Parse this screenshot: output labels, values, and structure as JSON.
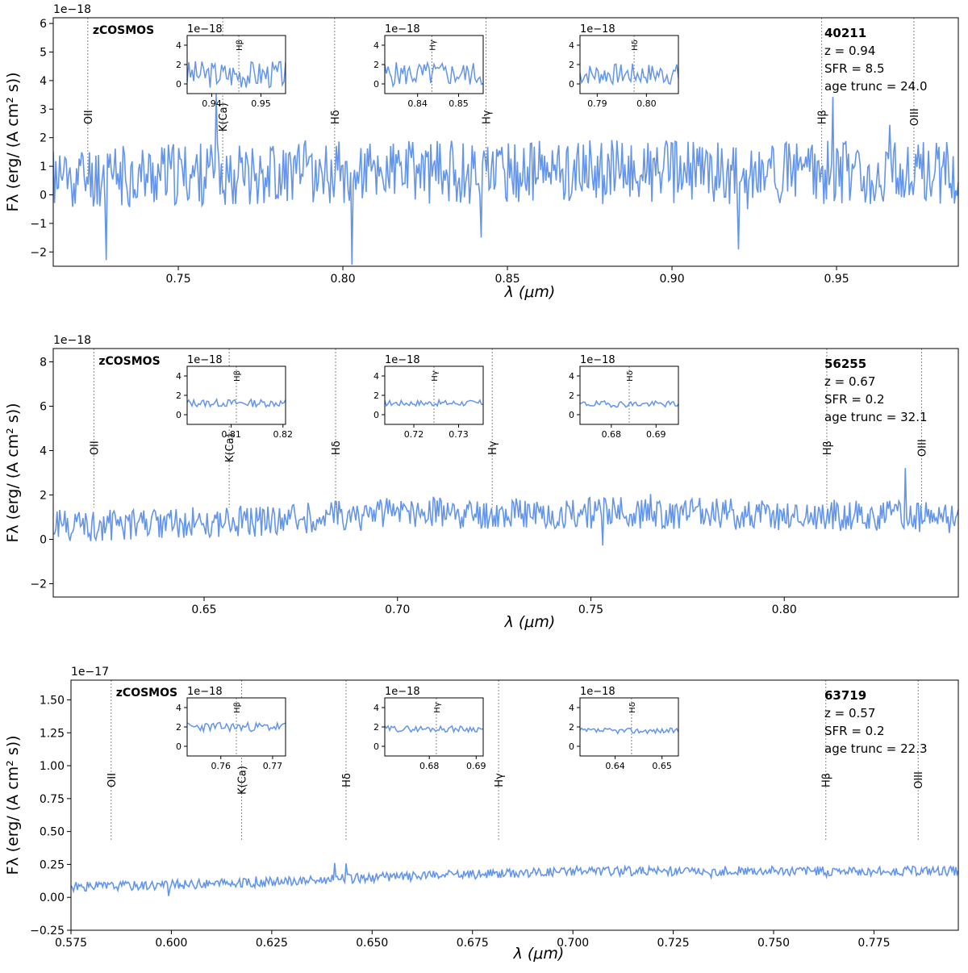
{
  "figure": {
    "survey_label": "zCOSMOS",
    "xlabel": "λ (μm)",
    "ylabel": "Fλ (erg/ (A cm² s))",
    "line_color": "#6495ED"
  },
  "chart_data": [
    {
      "type": "line",
      "id": "40211",
      "z_label": "z = 0.94",
      "sfr_label": "SFR = 8.5",
      "age_label": "age trunc = 24.0",
      "offset_label": "1e−18",
      "xlim": [
        0.712,
        0.987
      ],
      "ylim": [
        -2.5,
        6.2
      ],
      "xticks": [
        0.75,
        0.8,
        0.85,
        0.9,
        0.95
      ],
      "xtick_labels": [
        "0.75",
        "0.80",
        "0.85",
        "0.90",
        "0.95"
      ],
      "yticks": [
        -2,
        -1,
        0,
        1,
        2,
        3,
        4,
        5,
        6
      ],
      "ytick_labels": [
        "−2",
        "−1",
        "0",
        "1",
        "2",
        "3",
        "4",
        "5",
        "6"
      ],
      "series": [
        {
          "name": "spectrum",
          "baseline": 0.7,
          "noise": 1.4,
          "seed": 11,
          "segments": [
            [
              0.712,
              0.6
            ],
            [
              0.78,
              0.8
            ],
            [
              0.85,
              0.8
            ],
            [
              0.9,
              0.8
            ],
            [
              0.987,
              0.8
            ]
          ]
        }
      ],
      "lines": [
        {
          "name": "OII",
          "label": "OII",
          "x": 0.7225
        },
        {
          "name": "K(Ca)",
          "label": "K(Ca)",
          "x": 0.7635
        },
        {
          "name": "Hdelta",
          "label": "Hδ",
          "x": 0.7975
        },
        {
          "name": "Hgamma",
          "label": "Hγ",
          "x": 0.8435
        },
        {
          "name": "Hbeta",
          "label": "Hβ",
          "x": 0.9455
        },
        {
          "name": "OIII",
          "label": "OIII",
          "x": 0.9735
        }
      ],
      "insets": [
        {
          "line": "Hβ",
          "offset_label": "1e−18",
          "xlim": [
            0.935,
            0.955
          ],
          "ylim": [
            -1,
            5
          ],
          "xticks": [
            0.94,
            0.95
          ],
          "xtick_labels": [
            "0.94",
            "0.95"
          ],
          "yticks": [
            0,
            2,
            4
          ],
          "ytick_labels": [
            "0",
            "2",
            "4"
          ],
          "line_x": 0.9455,
          "baseline": 1.0,
          "noise": 1.8,
          "seed": 3
        },
        {
          "line": "Hγ",
          "offset_label": "1e−18",
          "xlim": [
            0.832,
            0.856
          ],
          "ylim": [
            -1,
            5
          ],
          "xticks": [
            0.84,
            0.85
          ],
          "xtick_labels": [
            "0.84",
            "0.85"
          ],
          "yticks": [
            0,
            2,
            4
          ],
          "ytick_labels": [
            "0",
            "2",
            "4"
          ],
          "line_x": 0.8435,
          "baseline": 1.0,
          "noise": 1.6,
          "seed": 5
        },
        {
          "line": "Hδ",
          "offset_label": "1e−18",
          "xlim": [
            0.7865,
            0.8065
          ],
          "ylim": [
            -1,
            5
          ],
          "xticks": [
            0.79,
            0.8
          ],
          "xtick_labels": [
            "0.79",
            "0.80"
          ],
          "yticks": [
            0,
            2,
            4
          ],
          "ytick_labels": [
            "0",
            "2",
            "4"
          ],
          "line_x": 0.7975,
          "baseline": 1.0,
          "noise": 1.4,
          "seed": 7
        }
      ]
    },
    {
      "type": "line",
      "id": "56255",
      "z_label": "z = 0.67",
      "sfr_label": "SFR = 0.2",
      "age_label": "age trunc = 32.1",
      "offset_label": "1e−18",
      "xlim": [
        0.611,
        0.845
      ],
      "ylim": [
        -2.6,
        8.6
      ],
      "xticks": [
        0.65,
        0.7,
        0.75,
        0.8
      ],
      "xtick_labels": [
        "0.65",
        "0.70",
        "0.75",
        "0.80"
      ],
      "yticks": [
        -2,
        0,
        2,
        4,
        6,
        8
      ],
      "ytick_labels": [
        "−2",
        "0",
        "2",
        "4",
        "6",
        "8"
      ],
      "series": [
        {
          "name": "spectrum",
          "baseline": 0.7,
          "noise": 0.9,
          "seed": 21,
          "segments": [
            [
              0.611,
              0.6
            ],
            [
              0.66,
              0.8
            ],
            [
              0.7,
              1.2
            ],
            [
              0.76,
              1.2
            ],
            [
              0.845,
              1.0
            ]
          ]
        }
      ],
      "lines": [
        {
          "name": "OII",
          "label": "OII",
          "x": 0.6215
        },
        {
          "name": "K(Ca)",
          "label": "K(Ca)",
          "x": 0.6565
        },
        {
          "name": "Hdelta",
          "label": "Hδ",
          "x": 0.684
        },
        {
          "name": "Hgamma",
          "label": "Hγ",
          "x": 0.7245
        },
        {
          "name": "Hbeta",
          "label": "Hβ",
          "x": 0.811
        },
        {
          "name": "OIII",
          "label": "OIII",
          "x": 0.8355
        }
      ],
      "insets": [
        {
          "line": "Hβ",
          "offset_label": "1e−18",
          "xlim": [
            0.8015,
            0.8205
          ],
          "ylim": [
            -1,
            5
          ],
          "xticks": [
            0.81,
            0.82
          ],
          "xtick_labels": [
            "0.81",
            "0.82"
          ],
          "yticks": [
            0,
            2,
            4
          ],
          "ytick_labels": [
            "0",
            "2",
            "4"
          ],
          "line_x": 0.811,
          "baseline": 1.2,
          "noise": 0.5,
          "seed": 13
        },
        {
          "line": "Hγ",
          "offset_label": "1e−18",
          "xlim": [
            0.7135,
            0.7355
          ],
          "ylim": [
            -1,
            5
          ],
          "xticks": [
            0.72,
            0.73
          ],
          "xtick_labels": [
            "0.72",
            "0.73"
          ],
          "yticks": [
            0,
            2,
            4
          ],
          "ytick_labels": [
            "0",
            "2",
            "4"
          ],
          "line_x": 0.7245,
          "baseline": 1.2,
          "noise": 0.4,
          "seed": 17
        },
        {
          "line": "Hδ",
          "offset_label": "1e−18",
          "xlim": [
            0.673,
            0.695
          ],
          "ylim": [
            -1,
            5
          ],
          "xticks": [
            0.68,
            0.69
          ],
          "xtick_labels": [
            "0.68",
            "0.69"
          ],
          "yticks": [
            0,
            2,
            4
          ],
          "ytick_labels": [
            "0",
            "2",
            "4"
          ],
          "line_x": 0.684,
          "baseline": 1.1,
          "noise": 0.4,
          "seed": 19
        }
      ]
    },
    {
      "type": "line",
      "id": "63719",
      "z_label": "z = 0.57",
      "sfr_label": "SFR = 0.2",
      "age_label": "age trunc = 22.3",
      "offset_label": "1e−17",
      "xlim": [
        0.575,
        0.796
      ],
      "ylim": [
        -0.25,
        1.65
      ],
      "xticks": [
        0.575,
        0.6,
        0.625,
        0.65,
        0.675,
        0.7,
        0.725,
        0.75,
        0.775
      ],
      "xtick_labels": [
        "0.575",
        "0.600",
        "0.625",
        "0.650",
        "0.675",
        "0.700",
        "0.725",
        "0.750",
        "0.775"
      ],
      "yticks": [
        -0.25,
        0.0,
        0.25,
        0.5,
        0.75,
        1.0,
        1.25,
        1.5
      ],
      "ytick_labels": [
        "−0.25",
        "0.00",
        "0.25",
        "0.50",
        "0.75",
        "1.00",
        "1.25",
        "1.50"
      ],
      "series": [
        {
          "name": "spectrum",
          "baseline": 0.1,
          "noise": 0.045,
          "seed": 31,
          "segments": [
            [
              0.575,
              0.08
            ],
            [
              0.62,
              0.11
            ],
            [
              0.65,
              0.15
            ],
            [
              0.7,
              0.2
            ],
            [
              0.796,
              0.2
            ]
          ]
        }
      ],
      "lines": [
        {
          "name": "OII",
          "label": "OII",
          "x": 0.585
        },
        {
          "name": "K(Ca)",
          "label": "K(Ca)",
          "x": 0.6175
        },
        {
          "name": "Hdelta",
          "label": "Hδ",
          "x": 0.6435
        },
        {
          "name": "Hgamma",
          "label": "Hγ",
          "x": 0.6815
        },
        {
          "name": "Hbeta",
          "label": "Hβ",
          "x": 0.763
        },
        {
          "name": "OIII",
          "label": "OIII",
          "x": 0.786
        }
      ],
      "insets": [
        {
          "line": "Hβ",
          "offset_label": "1e−18",
          "xlim": [
            0.7535,
            0.7725
          ],
          "ylim": [
            -1,
            5
          ],
          "xticks": [
            0.76,
            0.77
          ],
          "xtick_labels": [
            "0.76",
            "0.77"
          ],
          "yticks": [
            0,
            2,
            4
          ],
          "ytick_labels": [
            "0",
            "2",
            "4"
          ],
          "line_x": 0.763,
          "baseline": 2.0,
          "noise": 0.6,
          "seed": 23
        },
        {
          "line": "Hγ",
          "offset_label": "1e−18",
          "xlim": [
            0.6705,
            0.6915
          ],
          "ylim": [
            -1,
            5
          ],
          "xticks": [
            0.68,
            0.69
          ],
          "xtick_labels": [
            "0.68",
            "0.69"
          ],
          "yticks": [
            0,
            2,
            4
          ],
          "ytick_labels": [
            "0",
            "2",
            "4"
          ],
          "line_x": 0.6815,
          "baseline": 1.8,
          "noise": 0.4,
          "seed": 29
        },
        {
          "line": "Hδ",
          "offset_label": "1e−18",
          "xlim": [
            0.6325,
            0.6535
          ],
          "ylim": [
            -1,
            5
          ],
          "xticks": [
            0.64,
            0.65
          ],
          "xtick_labels": [
            "0.64",
            "0.65"
          ],
          "yticks": [
            0,
            2,
            4
          ],
          "ytick_labels": [
            "0",
            "2",
            "4"
          ],
          "line_x": 0.6435,
          "baseline": 1.6,
          "noise": 0.35,
          "seed": 37
        }
      ]
    }
  ]
}
